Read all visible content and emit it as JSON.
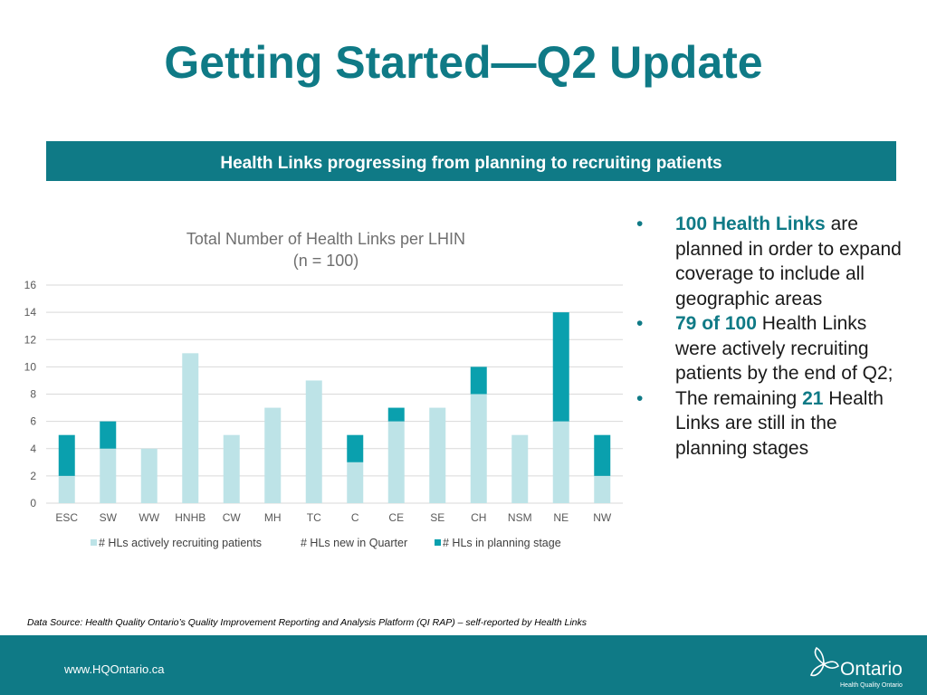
{
  "slide": {
    "title": "Getting Started—Q2 Update",
    "banner": "Health Links progressing from planning to recruiting patients"
  },
  "chart_data": {
    "type": "bar",
    "stacked": true,
    "title": "Total Number of Health Links per LHIN",
    "subtitle": "(n = 100)",
    "categories": [
      "ESC",
      "SW",
      "WW",
      "HNHB",
      "CW",
      "MH",
      "TC",
      "C",
      "CE",
      "SE",
      "CH",
      "NSM",
      "NE",
      "NW"
    ],
    "series": [
      {
        "name": "# HLs actively recruiting patients",
        "color": "#bde3e7",
        "values": [
          2,
          4,
          4,
          11,
          5,
          7,
          9,
          3,
          6,
          7,
          8,
          5,
          6,
          2
        ]
      },
      {
        "name": "# HLs new in Quarter",
        "color": "#ffffff",
        "values": [
          0,
          0,
          0,
          0,
          0,
          0,
          0,
          0,
          0,
          0,
          0,
          0,
          0,
          0
        ]
      },
      {
        "name": "# HLs in planning stage",
        "color": "#0aa0ae",
        "values": [
          3,
          2,
          0,
          0,
          0,
          0,
          0,
          2,
          1,
          0,
          2,
          0,
          8,
          3
        ]
      }
    ],
    "yticks": [
      0,
      2,
      4,
      6,
      8,
      10,
      12,
      14,
      16
    ],
    "ylim": [
      0,
      16
    ],
    "grid": true,
    "legend": "bottom"
  },
  "bullets": [
    {
      "highlight": "100 Health Links",
      "text": " are planned in order to expand coverage to include all geographic areas"
    },
    {
      "highlight": "79 of 100",
      "text": " Health Links were actively recruiting patients by the end of Q2;"
    },
    {
      "prefix": "The remaining ",
      "highlight": "21",
      "text": " Health Links are still in the planning stages"
    }
  ],
  "bullet_symbol": "•",
  "data_source": "Data Source:  Health Quality Ontario’s Quality Improvement Reporting and Analysis Platform (QI RAP) – self-reported by Health Links",
  "footer": {
    "url": "www.HQOntario.ca",
    "logo_text": "Ontario",
    "logo_subtext": "Health Quality Ontario"
  },
  "colors": {
    "accent": "#0f7a86"
  }
}
